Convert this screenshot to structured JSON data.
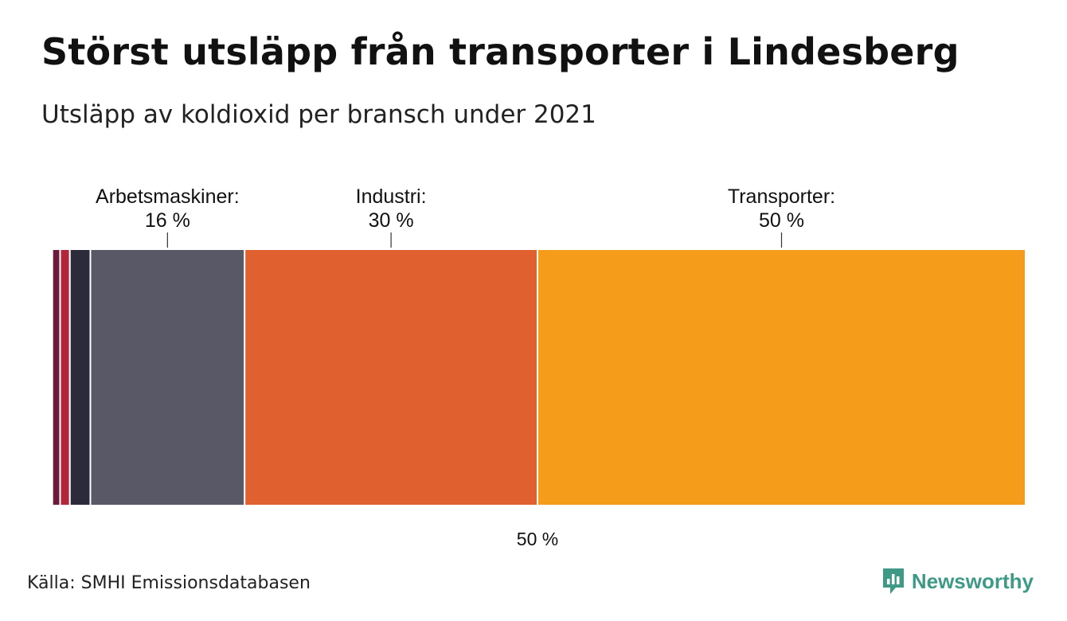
{
  "title": "Störst utsläpp från transporter i Lindesberg",
  "subtitle": "Utsläpp av koldioxid per bransch under 2021",
  "source": "Källa: SMHI Emissionsdatabasen",
  "logo": {
    "text": "Newsworthy",
    "icon": "newsworthy-logo-icon",
    "color": "#3e9a87"
  },
  "midline_label": "50 %",
  "chart_data": {
    "type": "bar",
    "orientation": "horizontal-stacked-100",
    "xlim": [
      0,
      100
    ],
    "midline": 50,
    "segments": [
      {
        "value": 0.3,
        "color": "#ffffff",
        "label": "",
        "value_label": ""
      },
      {
        "value": 0.8,
        "color": "#6b1a3a",
        "label": "",
        "value_label": ""
      },
      {
        "value": 1.0,
        "color": "#b3263a",
        "label": "",
        "value_label": ""
      },
      {
        "value": 2.1,
        "color": "#2c2b3c",
        "label": "",
        "value_label": ""
      },
      {
        "value": 15.8,
        "color": "#595866",
        "label": "Arbetsmaskiner:",
        "value_label": "16 %"
      },
      {
        "value": 30.0,
        "color": "#e0602f",
        "label": "Industri:",
        "value_label": "30 %"
      },
      {
        "value": 50.0,
        "color": "#f59c1a",
        "label": "Transporter:",
        "value_label": "50 %"
      }
    ]
  }
}
